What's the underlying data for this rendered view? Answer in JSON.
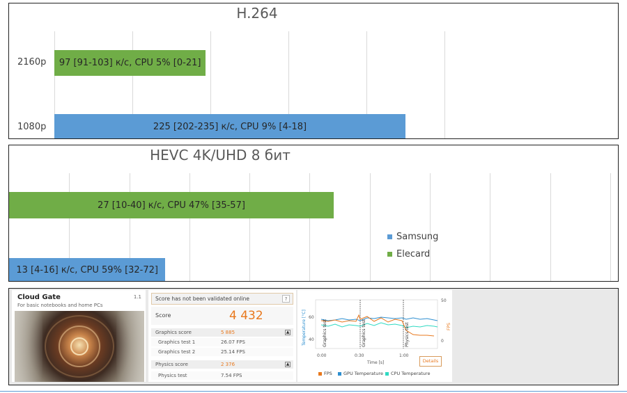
{
  "chart_data": [
    {
      "type": "bar",
      "title": "H.264",
      "categories": [
        "2160p",
        "1080p"
      ],
      "series": [
        {
          "name": "Elecard",
          "color": "#70ad47",
          "category": "2160p",
          "value": 97,
          "label": "97 [91-103] к/с, CPU 5% [0-21]"
        },
        {
          "name": "Samsung",
          "color": "#5b9bd5",
          "category": "1080p",
          "value": 225,
          "label": "225 [202-235] к/с, CPU 9% [4-18]"
        }
      ],
      "xlim": [
        0,
        250
      ],
      "grid": true
    },
    {
      "type": "bar",
      "title": "HEVC 4K/UHD 8 бит",
      "series": [
        {
          "name": "Elecard",
          "color": "#70ad47",
          "value": 27,
          "label": "27 [10-40] к/с, CPU 47% [35-57]"
        },
        {
          "name": "Samsung",
          "color": "#5b9bd5",
          "value": 13,
          "label": "13 [4-16] к/с, CPU 59% [32-72]"
        }
      ],
      "xlim": [
        0,
        50
      ],
      "grid": true,
      "legend": {
        "placement": "right",
        "entries": [
          "Samsung",
          "Elecard"
        ]
      }
    }
  ],
  "benchmark": {
    "test_name": "Cloud Gate",
    "test_sub": "For basic notebooks and home PCs",
    "version": "1.1",
    "validation_msg": "Score has not been validated online",
    "help_label": "?",
    "score_label": "Score",
    "score_value": "4 432",
    "graphics_score_label": "Graphics score",
    "graphics_score_value": "5 885",
    "graphics_test_1_label": "Graphics test 1",
    "graphics_test_1_value": "26.07 FPS",
    "graphics_test_2_label": "Graphics test 2",
    "graphics_test_2_value": "25.14 FPS",
    "physics_score_label": "Physics score",
    "physics_score_value": "2 376",
    "physics_test_label": "Physics test",
    "physics_test_value": "7.54 FPS",
    "toggle_glyph": "▲",
    "monitor": {
      "y_left_label": "Temperature [°C]",
      "y_right_label": "FPS",
      "y_left_ticks": [
        "60",
        "40"
      ],
      "y_right_ticks": [
        "50",
        "0"
      ],
      "x_ticks": [
        "0:00",
        "0:30",
        "1:00"
      ],
      "x_label": "Time [s]",
      "phases": [
        "Graphics test",
        "Graphics test",
        "Physics test"
      ],
      "details_label": "Details",
      "legend": [
        {
          "label": "FPS",
          "color": "#e8781d"
        },
        {
          "label": "GPU Temperature",
          "color": "#2e8fd0"
        },
        {
          "label": "CPU Temperature",
          "color": "#2fd9c2"
        }
      ]
    }
  }
}
